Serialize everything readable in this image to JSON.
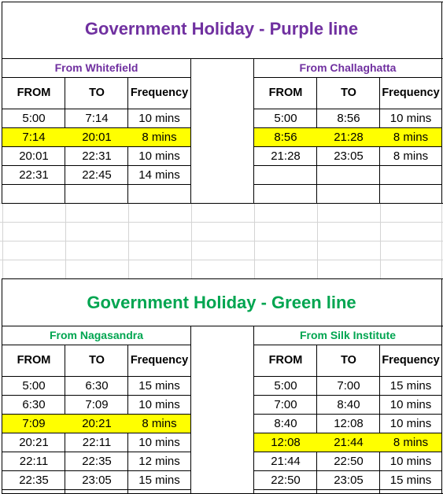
{
  "purple": {
    "title": "Government Holiday - Purple line",
    "title_color": "#7030a0",
    "left": {
      "name": "From Whitefield",
      "headers": [
        "FROM",
        "TO",
        "Frequency"
      ],
      "rows": [
        {
          "from": "5:00",
          "to": "7:14",
          "freq": "10 mins",
          "highlight": false
        },
        {
          "from": "7:14",
          "to": "20:01",
          "freq": "8 mins",
          "highlight": true
        },
        {
          "from": "20:01",
          "to": "22:31",
          "freq": "10 mins",
          "highlight": false
        },
        {
          "from": "22:31",
          "to": "22:45",
          "freq": "14 mins",
          "highlight": false
        }
      ]
    },
    "right": {
      "name": "From Challaghatta",
      "headers": [
        "FROM",
        "TO",
        "Frequency"
      ],
      "rows": [
        {
          "from": "5:00",
          "to": "8:56",
          "freq": "10 mins",
          "highlight": false
        },
        {
          "from": "8:56",
          "to": "21:28",
          "freq": "8 mins",
          "highlight": true
        },
        {
          "from": "21:28",
          "to": "23:05",
          "freq": "8 mins",
          "highlight": false
        },
        {
          "from": "",
          "to": "",
          "freq": "",
          "highlight": false
        }
      ]
    }
  },
  "green": {
    "title": "Government Holiday - Green line",
    "title_color": "#00a550",
    "left": {
      "name": "From Nagasandra",
      "headers": [
        "FROM",
        "TO",
        "Frequency"
      ],
      "rows": [
        {
          "from": "5:00",
          "to": "6:30",
          "freq": "15 mins",
          "highlight": false
        },
        {
          "from": "6:30",
          "to": "7:09",
          "freq": "10 mins",
          "highlight": false
        },
        {
          "from": "7:09",
          "to": "20:21",
          "freq": "8 mins",
          "highlight": true
        },
        {
          "from": "20:21",
          "to": "22:11",
          "freq": "10 mins",
          "highlight": false
        },
        {
          "from": "22:11",
          "to": "22:35",
          "freq": "12 mins",
          "highlight": false
        },
        {
          "from": "22:35",
          "to": "23:05",
          "freq": "15 mins",
          "highlight": false
        }
      ]
    },
    "right": {
      "name": "From Silk Institute",
      "headers": [
        "FROM",
        "TO",
        "Frequency"
      ],
      "rows": [
        {
          "from": "5:00",
          "to": "7:00",
          "freq": "15 mins",
          "highlight": false
        },
        {
          "from": "7:00",
          "to": "8:40",
          "freq": "10 mins",
          "highlight": false
        },
        {
          "from": "8:40",
          "to": "12:08",
          "freq": "10 mins",
          "highlight": false
        },
        {
          "from": "12:08",
          "to": "21:44",
          "freq": "8 mins",
          "highlight": true
        },
        {
          "from": "21:44",
          "to": "22:50",
          "freq": "10 mins",
          "highlight": false
        },
        {
          "from": "22:50",
          "to": "23:05",
          "freq": "15 mins",
          "highlight": false
        }
      ]
    }
  }
}
